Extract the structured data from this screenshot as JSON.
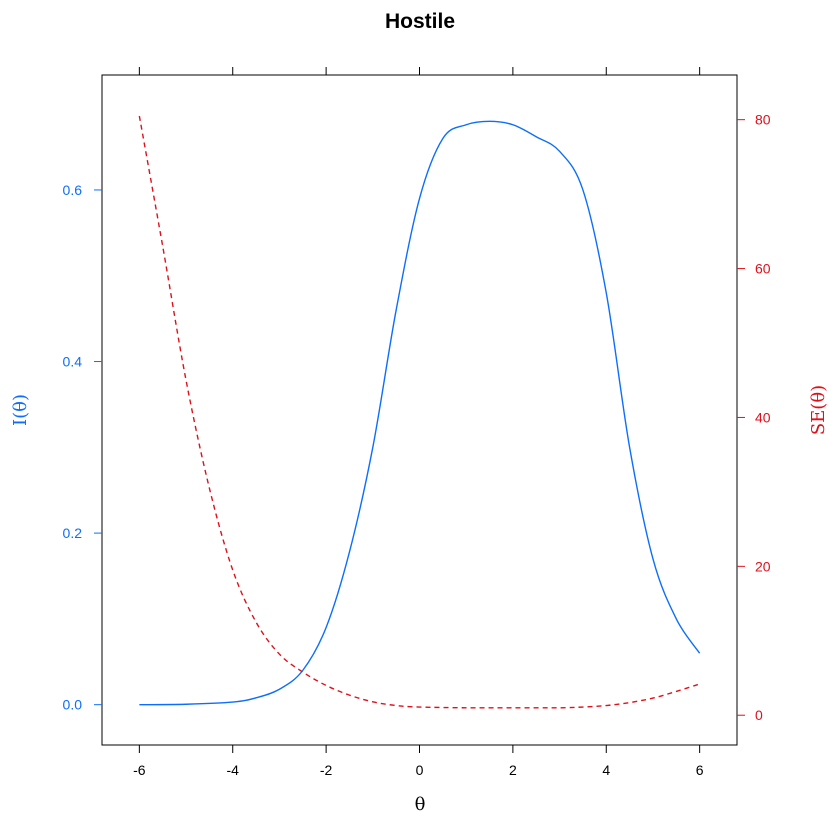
{
  "chart_data": {
    "type": "line",
    "title": "Hostile",
    "xlabel": "θ",
    "ylabel_left": "I(θ)",
    "ylabel_right": "SE(θ)",
    "xlim": [
      -6.8,
      6.8
    ],
    "ylim_left": [
      -0.047,
      0.734
    ],
    "ylim_right": [
      -4,
      86
    ],
    "x_ticks": [
      -6,
      -4,
      -2,
      0,
      2,
      4,
      6
    ],
    "y_ticks_left": [
      0.0,
      0.2,
      0.4,
      0.6
    ],
    "y_ticks_right": [
      0,
      20,
      40,
      60,
      80
    ],
    "colors": {
      "left": "#0d6efd",
      "right": "#e0101a",
      "axis": "#000000"
    },
    "series": [
      {
        "axis": "left",
        "style": "solid",
        "x": [
          -6,
          -5,
          -4,
          -3.5,
          -3,
          -2.5,
          -2,
          -1.5,
          -1,
          -0.5,
          0,
          0.5,
          1,
          1.5,
          2,
          2.5,
          3,
          3.5,
          4,
          4.5,
          5,
          5.5,
          6
        ],
        "values": [
          0.0,
          0.0005,
          0.003,
          0.008,
          0.018,
          0.04,
          0.09,
          0.178,
          0.3,
          0.46,
          0.59,
          0.66,
          0.676,
          0.68,
          0.676,
          0.662,
          0.645,
          0.6,
          0.48,
          0.3,
          0.17,
          0.1,
          0.06
        ]
      },
      {
        "axis": "right",
        "style": "dashed",
        "x": [
          -6,
          -5.5,
          -5,
          -4.5,
          -4,
          -3.5,
          -3,
          -2.5,
          -2,
          -1.5,
          -1,
          -0.5,
          0,
          1,
          2,
          3,
          3.5,
          4,
          4.5,
          5,
          5.5,
          6
        ],
        "values": [
          80.5,
          63,
          45,
          30.5,
          19.5,
          12.5,
          8.2,
          5.8,
          4.0,
          2.7,
          1.8,
          1.3,
          1.1,
          1.0,
          1.0,
          1.0,
          1.1,
          1.3,
          1.7,
          2.3,
          3.2,
          4.2
        ]
      }
    ]
  }
}
